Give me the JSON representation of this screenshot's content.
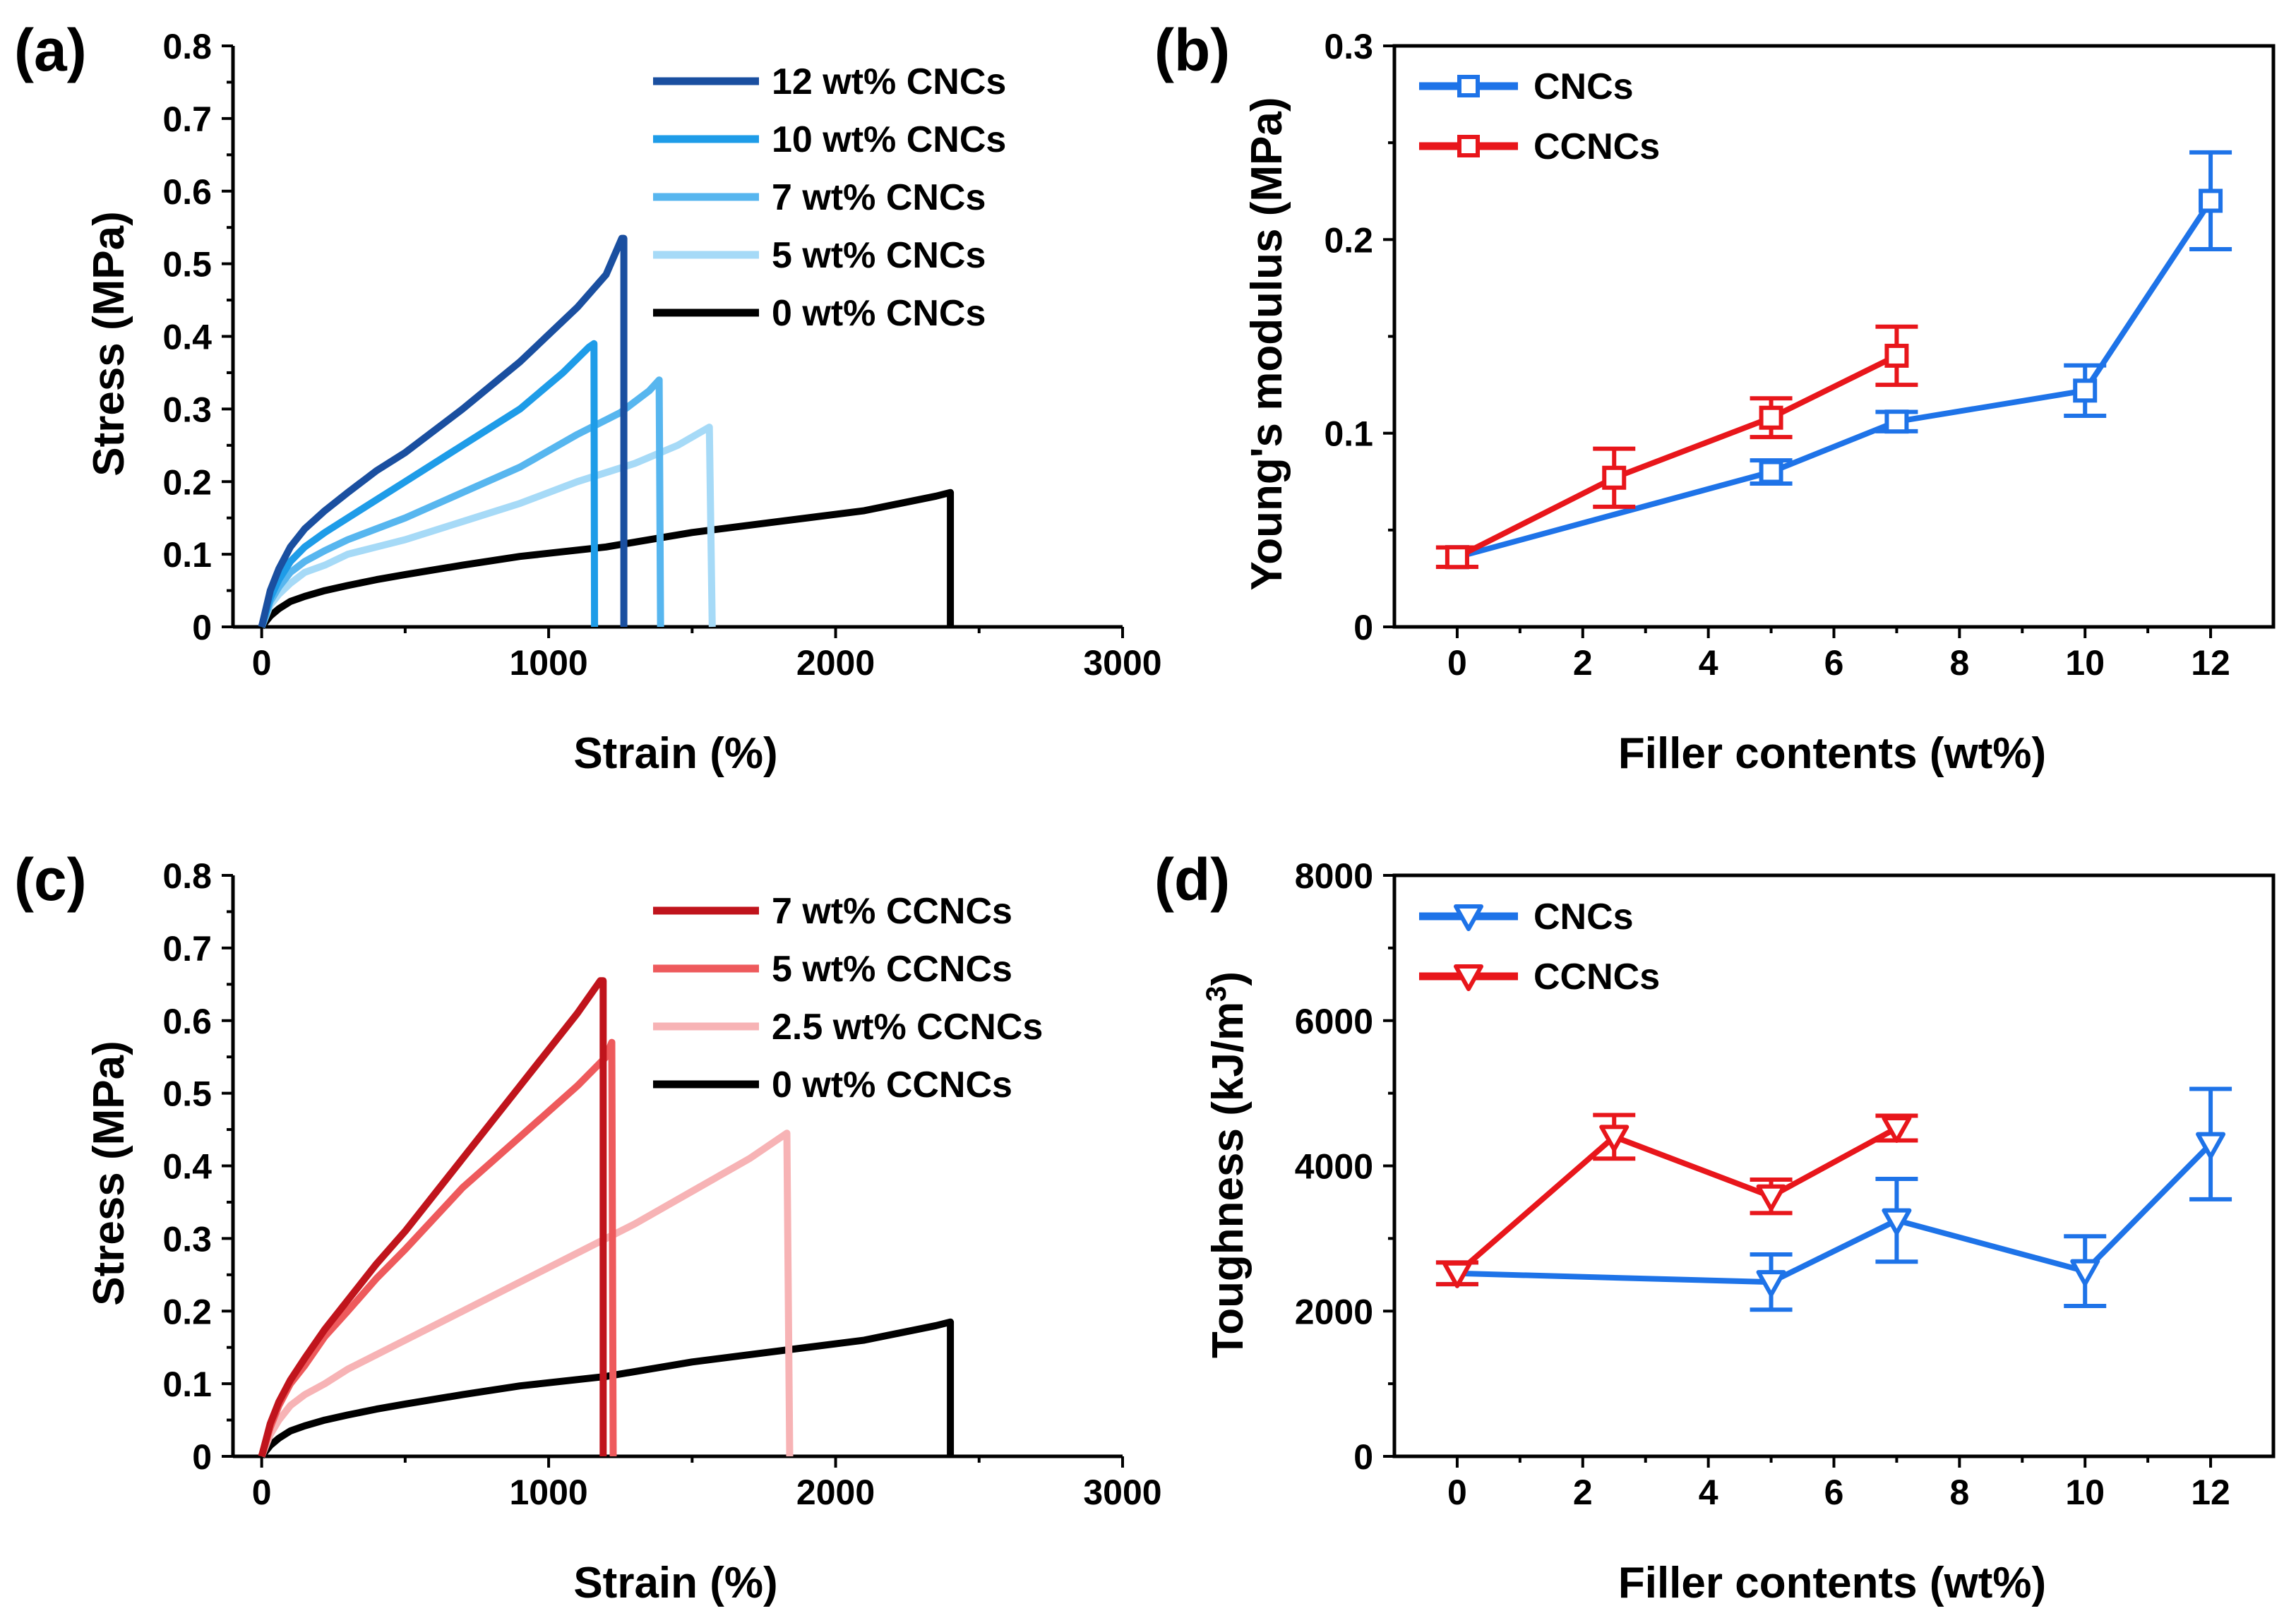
{
  "chart_data": [
    {
      "panel": "(a)",
      "type": "line",
      "xlabel": "Strain (%)",
      "ylabel": "Stress (MPa)",
      "xlim": [
        -100,
        3000
      ],
      "ylim": [
        0,
        0.8
      ],
      "xticks": [
        "0",
        "1000",
        "2000",
        "3000"
      ],
      "yticks": [
        "0",
        "0.1",
        "0.2",
        "0.3",
        "0.4",
        "0.5",
        "0.6",
        "0.7",
        "0.8"
      ],
      "legend_position": "top-right",
      "series": [
        {
          "name": "12 wt% CNCs",
          "color": "#1a4fa0",
          "points": [
            [
              0,
              0
            ],
            [
              30,
              0.05
            ],
            [
              60,
              0.08
            ],
            [
              100,
              0.11
            ],
            [
              150,
              0.135
            ],
            [
              220,
              0.16
            ],
            [
              300,
              0.185
            ],
            [
              400,
              0.215
            ],
            [
              500,
              0.24
            ],
            [
              700,
              0.3
            ],
            [
              900,
              0.365
            ],
            [
              1100,
              0.44
            ],
            [
              1200,
              0.485
            ],
            [
              1255,
              0.535
            ],
            [
              1262,
              0.535
            ],
            [
              1262,
              0
            ]
          ]
        },
        {
          "name": "10 wt% CNCs",
          "color": "#1e9ce8",
          "points": [
            [
              0,
              0
            ],
            [
              30,
              0.04
            ],
            [
              60,
              0.065
            ],
            [
              100,
              0.09
            ],
            [
              150,
              0.11
            ],
            [
              220,
              0.13
            ],
            [
              300,
              0.15
            ],
            [
              400,
              0.175
            ],
            [
              500,
              0.2
            ],
            [
              700,
              0.25
            ],
            [
              900,
              0.3
            ],
            [
              1050,
              0.35
            ],
            [
              1140,
              0.385
            ],
            [
              1158,
              0.39
            ],
            [
              1160,
              0
            ]
          ]
        },
        {
          "name": "7 wt% CNCs",
          "color": "#57b6ef",
          "points": [
            [
              0,
              0
            ],
            [
              30,
              0.035
            ],
            [
              60,
              0.055
            ],
            [
              100,
              0.075
            ],
            [
              150,
              0.09
            ],
            [
              220,
              0.105
            ],
            [
              300,
              0.12
            ],
            [
              400,
              0.135
            ],
            [
              500,
              0.15
            ],
            [
              700,
              0.185
            ],
            [
              900,
              0.22
            ],
            [
              1100,
              0.265
            ],
            [
              1250,
              0.295
            ],
            [
              1350,
              0.325
            ],
            [
              1385,
              0.34
            ],
            [
              1390,
              0
            ]
          ]
        },
        {
          "name": "5 wt% CNCs",
          "color": "#a6daf7",
          "points": [
            [
              0,
              0
            ],
            [
              30,
              0.03
            ],
            [
              60,
              0.045
            ],
            [
              100,
              0.06
            ],
            [
              150,
              0.075
            ],
            [
              220,
              0.085
            ],
            [
              300,
              0.1
            ],
            [
              400,
              0.11
            ],
            [
              500,
              0.12
            ],
            [
              700,
              0.145
            ],
            [
              900,
              0.17
            ],
            [
              1100,
              0.2
            ],
            [
              1300,
              0.225
            ],
            [
              1450,
              0.25
            ],
            [
              1560,
              0.275
            ],
            [
              1570,
              0
            ]
          ]
        },
        {
          "name": "0 wt% CNCs",
          "color": "#000000",
          "points": [
            [
              0,
              0
            ],
            [
              30,
              0.015
            ],
            [
              60,
              0.025
            ],
            [
              100,
              0.035
            ],
            [
              150,
              0.042
            ],
            [
              220,
              0.05
            ],
            [
              300,
              0.057
            ],
            [
              400,
              0.065
            ],
            [
              500,
              0.072
            ],
            [
              700,
              0.085
            ],
            [
              900,
              0.097
            ],
            [
              1200,
              0.11
            ],
            [
              1500,
              0.13
            ],
            [
              1800,
              0.145
            ],
            [
              2100,
              0.16
            ],
            [
              2350,
              0.18
            ],
            [
              2400,
              0.185
            ],
            [
              2400,
              0
            ]
          ]
        }
      ]
    },
    {
      "panel": "(b)",
      "type": "line",
      "xlabel": "Filler contents (wt%)",
      "ylabel": "Young's modulus (MPa)",
      "xlim": [
        -1,
        13
      ],
      "ylim": [
        0,
        0.3
      ],
      "xticks": [
        "0",
        "2",
        "4",
        "6",
        "8",
        "10",
        "12"
      ],
      "yticks": [
        "0",
        "0.1",
        "0.2",
        "0.3"
      ],
      "legend_position": "top-left",
      "marker": "square",
      "series": [
        {
          "name": "CNCs",
          "color": "#1e73e8",
          "x": [
            0,
            5,
            7,
            10,
            12
          ],
          "values": [
            0.036,
            0.08,
            0.106,
            0.122,
            0.22
          ],
          "errors": [
            0.005,
            0.006,
            0.005,
            0.013,
            0.025
          ]
        },
        {
          "name": "CCNCs",
          "color": "#e8161b",
          "x": [
            0,
            2.5,
            5,
            7
          ],
          "values": [
            0.036,
            0.077,
            0.108,
            0.14
          ],
          "errors": [
            0.005,
            0.015,
            0.01,
            0.015
          ]
        }
      ]
    },
    {
      "panel": "(c)",
      "type": "line",
      "xlabel": "Strain (%)",
      "ylabel": "Stress (MPa)",
      "xlim": [
        -100,
        3000
      ],
      "ylim": [
        0,
        0.8
      ],
      "xticks": [
        "0",
        "1000",
        "2000",
        "3000"
      ],
      "yticks": [
        "0",
        "0.1",
        "0.2",
        "0.3",
        "0.4",
        "0.5",
        "0.6",
        "0.7",
        "0.8"
      ],
      "legend_position": "top-right",
      "series": [
        {
          "name": "7 wt% CCNCs",
          "color": "#c0141c",
          "points": [
            [
              0,
              0
            ],
            [
              30,
              0.045
            ],
            [
              60,
              0.075
            ],
            [
              100,
              0.105
            ],
            [
              150,
              0.135
            ],
            [
              220,
              0.175
            ],
            [
              300,
              0.215
            ],
            [
              400,
              0.265
            ],
            [
              500,
              0.31
            ],
            [
              700,
              0.41
            ],
            [
              900,
              0.51
            ],
            [
              1100,
              0.61
            ],
            [
              1180,
              0.655
            ],
            [
              1190,
              0.655
            ],
            [
              1190,
              0
            ]
          ]
        },
        {
          "name": "5 wt% CCNCs",
          "color": "#ee5a5c",
          "points": [
            [
              0,
              0
            ],
            [
              30,
              0.04
            ],
            [
              60,
              0.07
            ],
            [
              100,
              0.1
            ],
            [
              150,
              0.125
            ],
            [
              220,
              0.165
            ],
            [
              300,
              0.2
            ],
            [
              400,
              0.245
            ],
            [
              500,
              0.285
            ],
            [
              700,
              0.37
            ],
            [
              900,
              0.44
            ],
            [
              1100,
              0.51
            ],
            [
              1200,
              0.55
            ],
            [
              1220,
              0.57
            ],
            [
              1225,
              0
            ]
          ]
        },
        {
          "name": "2.5 wt% CCNCs",
          "color": "#f7b3b5",
          "points": [
            [
              0,
              0
            ],
            [
              30,
              0.03
            ],
            [
              60,
              0.05
            ],
            [
              100,
              0.07
            ],
            [
              150,
              0.085
            ],
            [
              220,
              0.1
            ],
            [
              300,
              0.12
            ],
            [
              400,
              0.14
            ],
            [
              500,
              0.16
            ],
            [
              700,
              0.2
            ],
            [
              900,
              0.24
            ],
            [
              1100,
              0.28
            ],
            [
              1300,
              0.32
            ],
            [
              1500,
              0.365
            ],
            [
              1700,
              0.41
            ],
            [
              1830,
              0.445
            ],
            [
              1840,
              0
            ]
          ]
        },
        {
          "name": "0 wt% CCNCs",
          "color": "#000000",
          "points": [
            [
              0,
              0
            ],
            [
              30,
              0.015
            ],
            [
              60,
              0.025
            ],
            [
              100,
              0.035
            ],
            [
              150,
              0.042
            ],
            [
              220,
              0.05
            ],
            [
              300,
              0.057
            ],
            [
              400,
              0.065
            ],
            [
              500,
              0.072
            ],
            [
              700,
              0.085
            ],
            [
              900,
              0.097
            ],
            [
              1200,
              0.11
            ],
            [
              1500,
              0.13
            ],
            [
              1800,
              0.145
            ],
            [
              2100,
              0.16
            ],
            [
              2350,
              0.18
            ],
            [
              2400,
              0.185
            ],
            [
              2400,
              0
            ]
          ]
        }
      ]
    },
    {
      "panel": "(d)",
      "type": "line",
      "xlabel": "Filler contents (wt%)",
      "ylabel": "Toughness (kJ/m",
      "ylabel_sup": "3",
      "ylabel_tail": ")",
      "xlim": [
        -1,
        13
      ],
      "ylim": [
        0,
        8000
      ],
      "xticks": [
        "0",
        "2",
        "4",
        "6",
        "8",
        "10",
        "12"
      ],
      "yticks": [
        "0",
        "2000",
        "4000",
        "6000",
        "8000"
      ],
      "legend_position": "top-left",
      "marker": "triangle-down",
      "series": [
        {
          "name": "CNCs",
          "color": "#1e73e8",
          "x": [
            0,
            5,
            7,
            10,
            12
          ],
          "values": [
            2520,
            2400,
            3250,
            2550,
            4300
          ],
          "errors": [
            150,
            380,
            570,
            480,
            760
          ]
        },
        {
          "name": "CCNCs",
          "color": "#e8161b",
          "x": [
            0,
            2.5,
            5,
            7
          ],
          "values": [
            2520,
            4400,
            3580,
            4520
          ],
          "errors": [
            150,
            300,
            230,
            170
          ]
        }
      ]
    }
  ]
}
